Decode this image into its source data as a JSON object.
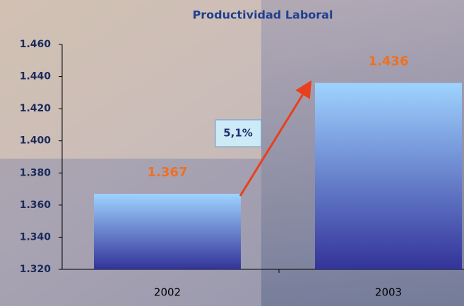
{
  "chart_data": {
    "type": "bar",
    "title": "Productividad Laboral",
    "categories": [
      "2002",
      "2003"
    ],
    "values": [
      1367,
      1436
    ],
    "value_labels": [
      "1.367",
      "1.436"
    ],
    "ylim": [
      1320,
      1460
    ],
    "yticks": [
      {
        "value": 1320,
        "label": "1.320"
      },
      {
        "value": 1340,
        "label": "1.340"
      },
      {
        "value": 1360,
        "label": "1.360"
      },
      {
        "value": 1380,
        "label": "1.380"
      },
      {
        "value": 1400,
        "label": "1.400"
      },
      {
        "value": 1420,
        "label": "1.420"
      },
      {
        "value": 1440,
        "label": "1.440"
      },
      {
        "value": 1460,
        "label": "1.460"
      }
    ],
    "annotation": "5,1%",
    "grid": false
  }
}
